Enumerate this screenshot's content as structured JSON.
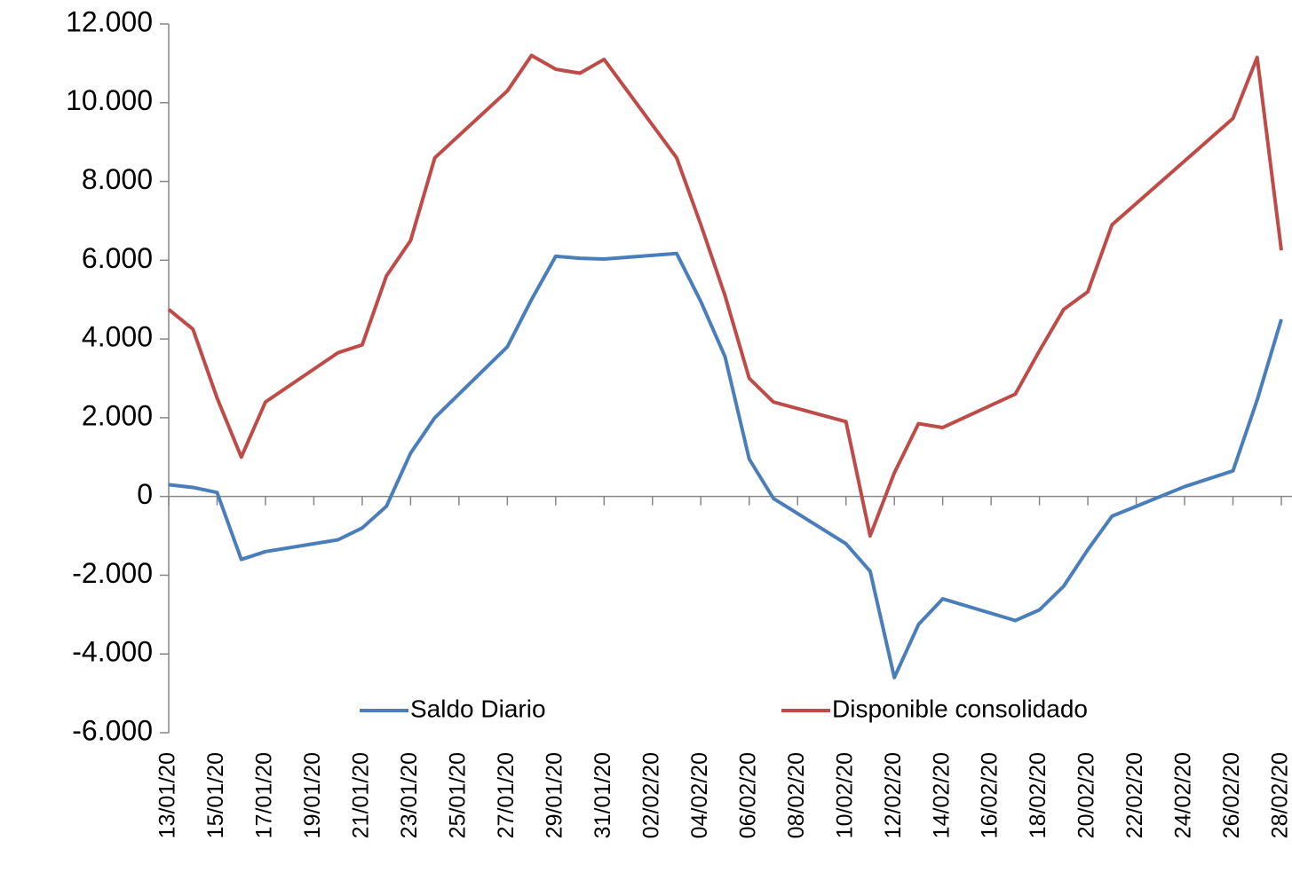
{
  "chart_data": {
    "type": "line",
    "x": [
      "13/01/20",
      "14/01/20",
      "15/01/20",
      "16/01/20",
      "17/01/20",
      "20/01/20",
      "21/01/20",
      "22/01/20",
      "23/01/20",
      "24/01/20",
      "27/01/20",
      "28/01/20",
      "29/01/20",
      "30/01/20",
      "31/01/20",
      "03/02/20",
      "04/02/20",
      "05/02/20",
      "06/02/20",
      "07/02/20",
      "10/02/20",
      "11/02/20",
      "12/02/20",
      "13/02/20",
      "14/02/20",
      "17/02/20",
      "18/02/20",
      "19/02/20",
      "20/02/20",
      "21/02/20",
      "24/02/20",
      "25/02/20",
      "26/02/20",
      "27/02/20",
      "28/02/20"
    ],
    "series": [
      {
        "name": "Saldo Diario",
        "color": "#4a7ebb",
        "values": [
          300,
          230,
          100,
          -1600,
          -1400,
          -1100,
          -800,
          -250,
          1100,
          2000,
          3800,
          5000,
          6100,
          6050,
          6030,
          6170,
          4950,
          3550,
          950,
          -50,
          -1200,
          -1900,
          -4600,
          -3250,
          -2600,
          -3150,
          -2880,
          -2280,
          -1350,
          -500,
          250,
          450,
          650,
          2450,
          4500
        ]
      },
      {
        "name": "Disponible consolidado",
        "color": "#be4b48",
        "values": [
          4750,
          4250,
          2500,
          1000,
          2400,
          3650,
          3850,
          5600,
          6500,
          8600,
          10300,
          11200,
          10850,
          10750,
          11100,
          8600,
          6900,
          5100,
          3000,
          2400,
          1900,
          -1000,
          600,
          1850,
          1750,
          2600,
          3700,
          4750,
          5200,
          6900,
          8520,
          9060,
          9600,
          11150,
          6250
        ]
      }
    ],
    "xlim": [
      "13/01/20",
      "28/02/20"
    ],
    "xticks": [
      "13/01/20",
      "15/01/20",
      "17/01/20",
      "19/01/20",
      "21/01/20",
      "23/01/20",
      "25/01/20",
      "27/01/20",
      "29/01/20",
      "31/01/20",
      "02/02/20",
      "04/02/20",
      "06/02/20",
      "08/02/20",
      "10/02/20",
      "12/02/20",
      "14/02/20",
      "16/02/20",
      "18/02/20",
      "20/02/20",
      "22/02/20",
      "24/02/20",
      "26/02/20",
      "28/02/20"
    ],
    "ylim": [
      -6000,
      12000
    ],
    "yticks": [
      {
        "value": -6000,
        "label": "-6.000"
      },
      {
        "value": -4000,
        "label": "-4.000"
      },
      {
        "value": -2000,
        "label": "-2.000"
      },
      0,
      {
        "value": 2000,
        "label": "2.000"
      },
      {
        "value": 4000,
        "label": "4.000"
      },
      {
        "value": 6000,
        "label": "6.000"
      },
      {
        "value": 8000,
        "label": "8.000"
      },
      {
        "value": 10000,
        "label": "10.000"
      },
      {
        "value": 12000,
        "label": "12.000"
      }
    ],
    "grid": false,
    "legend": "bottom"
  }
}
